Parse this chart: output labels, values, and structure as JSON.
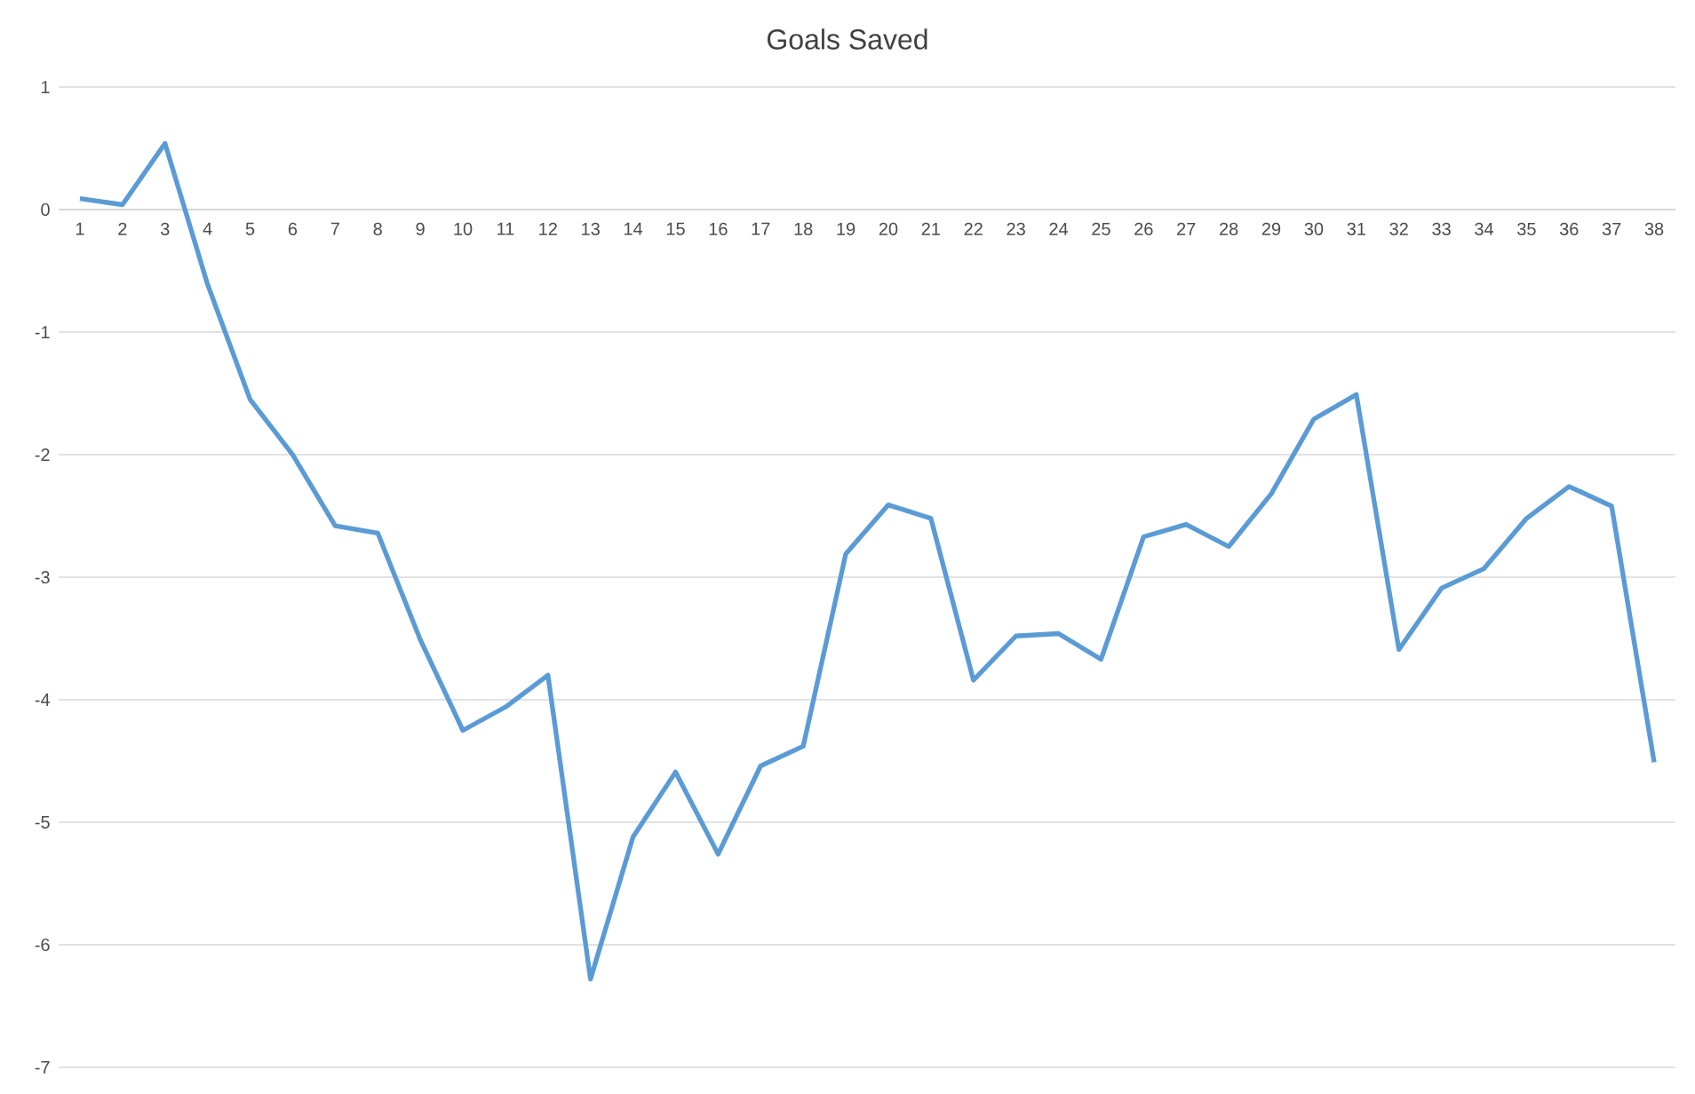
{
  "chart_data": {
    "type": "line",
    "title": "Goals Saved",
    "categories": [
      "1",
      "2",
      "3",
      "4",
      "5",
      "6",
      "7",
      "8",
      "9",
      "10",
      "11",
      "12",
      "13",
      "14",
      "15",
      "16",
      "17",
      "18",
      "19",
      "20",
      "21",
      "22",
      "23",
      "24",
      "25",
      "26",
      "27",
      "28",
      "29",
      "30",
      "31",
      "32",
      "33",
      "34",
      "35",
      "36",
      "37",
      "38"
    ],
    "series": [
      {
        "color": "#5b9bd5",
        "values": [
          0.09,
          0.04,
          0.54,
          -0.61,
          -1.55,
          -2.0,
          -2.58,
          -2.64,
          -3.51,
          -4.25,
          -4.06,
          -3.8,
          -6.28,
          -5.12,
          -4.59,
          -5.26,
          -4.54,
          -4.38,
          -2.81,
          -2.41,
          -2.52,
          -3.84,
          -3.48,
          -3.46,
          -3.67,
          -2.67,
          -2.57,
          -2.75,
          -2.32,
          -1.71,
          -1.51,
          -3.59,
          -3.09,
          -2.93,
          -2.52,
          -2.26,
          -2.42,
          -4.51
        ]
      }
    ],
    "ylim": [
      -7,
      1
    ],
    "yticks": [
      -7,
      -6,
      -5,
      -4,
      -3,
      -2,
      -1,
      0,
      1
    ],
    "grid": "y",
    "legend": false,
    "marker": "none",
    "line_style": "solid"
  }
}
